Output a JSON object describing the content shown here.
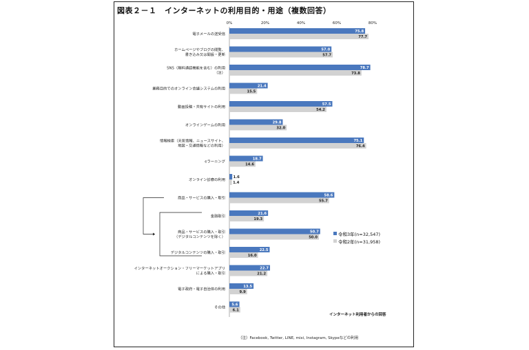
{
  "title": "図表２－１　インターネットの利用目的・用途（複数回答）",
  "footnote": "（注）Facebook, Twitter, LINE, mixi, Instagram, Skypeなどの利用",
  "source": "インターネット利用者からの回答",
  "colors": {
    "series1": "#4a78be",
    "series2": "#d2d2d2",
    "axis": "#999999"
  },
  "chart_data": {
    "type": "bar",
    "orientation": "horizontal",
    "title": "図表２－１　インターネットの利用目的・用途（複数回答）",
    "xlim": [
      0,
      80
    ],
    "xticks": [
      "0%",
      "20%",
      "40%",
      "60%",
      "80%"
    ],
    "legend_position": "right",
    "grid": false,
    "categories": [
      [
        "電子メールの送受信"
      ],
      [
        "ホームページやブログの閲覧、",
        "書き込み又は開設・更新"
      ],
      [
        "SNS（無料通話機能を含む）の利用",
        "（注）"
      ],
      [
        "業務目的でのオンライン会議システムの利用"
      ],
      [
        "動画投稿・共有サイトの利用"
      ],
      [
        "オンラインゲームの利用"
      ],
      [
        "情報検索（天気情報、ニュースサイト、",
        "地図・交通情報などの利用）"
      ],
      [
        "eラーニング"
      ],
      [
        "オンライン診療の利用"
      ],
      [
        "商品・サービスの購入・取引"
      ],
      [
        "金融取引"
      ],
      [
        "商品・サービスの購入・取引",
        "（デジタルコンテンツを除く）"
      ],
      [
        "デジタルコンテンツの購入・取引"
      ],
      [
        "インターネットオークション・フリーマーケットアプリ",
        "による購入・取引"
      ],
      [
        "電子政府・電子自治体の利用"
      ],
      [
        "その他"
      ]
    ],
    "series": [
      {
        "name": "令和3年(n=32,547)",
        "values": [
          75.8,
          57.0,
          78.7,
          21.4,
          57.5,
          29.8,
          75.1,
          18.7,
          1.6,
          58.6,
          21.6,
          50.7,
          22.5,
          22.7,
          13.5,
          5.6
        ]
      },
      {
        "name": "令和2年(n=31,958)",
        "values": [
          77.7,
          57.7,
          73.8,
          15.5,
          54.2,
          32.0,
          76.4,
          14.6,
          1.4,
          55.7,
          19.3,
          50.0,
          16.0,
          21.2,
          9.9,
          6.1
        ]
      }
    ]
  }
}
